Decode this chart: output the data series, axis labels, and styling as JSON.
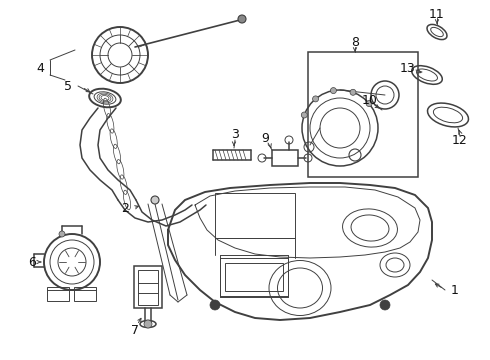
{
  "bg_color": "#ffffff",
  "line_color": "#404040",
  "label_color": "#111111",
  "lw_main": 1.1,
  "lw_thin": 0.7,
  "lw_thick": 1.4
}
